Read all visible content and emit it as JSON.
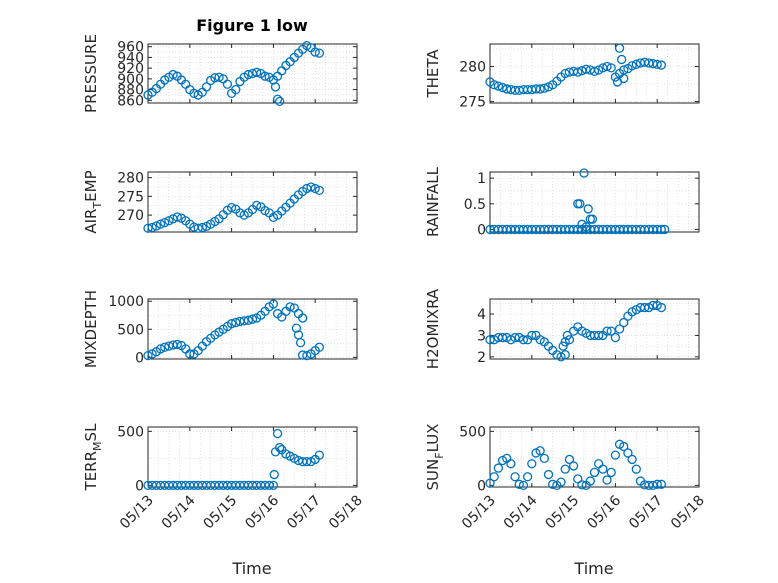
{
  "figure_title": "Figure 1 low",
  "colors": {
    "marker": "#0072BD",
    "axis": "#262626",
    "grid": "#d0d0d0"
  },
  "chart_data": [
    {
      "type": "scatter",
      "title": "Figure 1 low",
      "ylabel": "PRESSURE",
      "yticks": [
        "860",
        "880",
        "900",
        "920",
        "940",
        "960"
      ],
      "ylim": [
        855,
        965
      ],
      "xlim": [
        13,
        18
      ],
      "grid": true,
      "x": [
        13.0,
        13.1,
        13.2,
        13.3,
        13.4,
        13.5,
        13.6,
        13.7,
        13.8,
        13.9,
        14.0,
        14.1,
        14.2,
        14.3,
        14.4,
        14.5,
        14.6,
        14.7,
        14.8,
        14.9,
        15.0,
        15.1,
        15.2,
        15.3,
        15.4,
        15.5,
        15.6,
        15.7,
        15.8,
        15.9,
        16.0,
        16.1,
        16.2,
        16.3,
        16.4,
        16.5,
        16.6,
        16.7,
        16.8,
        16.9,
        17.0,
        17.1,
        16.05,
        16.1,
        16.15
      ],
      "y": [
        870,
        875,
        882,
        890,
        898,
        903,
        908,
        905,
        898,
        890,
        880,
        873,
        870,
        875,
        885,
        897,
        902,
        903,
        900,
        890,
        873,
        880,
        895,
        903,
        908,
        910,
        912,
        910,
        905,
        903,
        898,
        905,
        915,
        925,
        932,
        940,
        948,
        955,
        962,
        958,
        950,
        948,
        885,
        862,
        858
      ]
    },
    {
      "type": "scatter",
      "ylabel": "THETA",
      "yticks": [
        "275",
        "280"
      ],
      "ylim": [
        274.8,
        283.2
      ],
      "xlim": [
        13,
        18
      ],
      "grid": true,
      "x": [
        13.0,
        13.1,
        13.2,
        13.3,
        13.4,
        13.5,
        13.6,
        13.7,
        13.8,
        13.9,
        14.0,
        14.1,
        14.2,
        14.3,
        14.4,
        14.5,
        14.6,
        14.7,
        14.8,
        14.9,
        15.0,
        15.1,
        15.2,
        15.3,
        15.4,
        15.5,
        15.6,
        15.7,
        15.8,
        15.9,
        16.0,
        16.1,
        16.2,
        16.3,
        16.4,
        16.5,
        16.6,
        16.7,
        16.8,
        16.9,
        17.0,
        17.1,
        16.05,
        16.1,
        16.15,
        16.2
      ],
      "y": [
        277.8,
        277.4,
        277.2,
        277.0,
        276.8,
        276.7,
        276.6,
        276.6,
        276.7,
        276.7,
        276.7,
        276.8,
        276.8,
        276.9,
        277.1,
        277.4,
        277.9,
        278.5,
        279.0,
        279.2,
        279.3,
        279.2,
        279.4,
        279.6,
        279.5,
        279.3,
        279.5,
        279.8,
        280.0,
        279.8,
        278.5,
        279.0,
        279.5,
        279.7,
        280.1,
        280.3,
        280.5,
        280.6,
        280.5,
        280.4,
        280.3,
        280.2,
        277.8,
        282.6,
        281.0,
        278.3
      ]
    },
    {
      "type": "scatter",
      "ylabel": "AIR_TEMP",
      "yticks": [
        "270",
        "275",
        "280"
      ],
      "ylim": [
        265.5,
        281.5
      ],
      "xlim": [
        13,
        18
      ],
      "grid": true,
      "x": [
        13.0,
        13.1,
        13.2,
        13.3,
        13.4,
        13.5,
        13.6,
        13.7,
        13.8,
        13.9,
        14.0,
        14.1,
        14.2,
        14.3,
        14.4,
        14.5,
        14.6,
        14.7,
        14.8,
        14.9,
        15.0,
        15.1,
        15.2,
        15.3,
        15.4,
        15.5,
        15.6,
        15.7,
        15.8,
        15.9,
        16.0,
        16.1,
        16.2,
        16.3,
        16.4,
        16.5,
        16.6,
        16.7,
        16.8,
        16.9,
        17.0,
        17.1
      ],
      "y": [
        266.5,
        266.7,
        267.1,
        267.6,
        268.0,
        268.5,
        269.0,
        269.5,
        269.2,
        268.5,
        267.6,
        266.8,
        266.5,
        266.7,
        267.0,
        267.6,
        268.3,
        269.0,
        270.1,
        271.3,
        272.0,
        271.6,
        270.6,
        270.0,
        270.6,
        271.5,
        272.6,
        272.2,
        271.2,
        270.6,
        269.4,
        270.0,
        271.1,
        272.1,
        273.2,
        274.3,
        275.4,
        276.3,
        277.1,
        277.5,
        277.1,
        276.6
      ]
    },
    {
      "type": "scatter",
      "ylabel": "RAINFALL",
      "yticks": [
        "0",
        "0.5",
        "1"
      ],
      "ylim": [
        -0.05,
        1.12
      ],
      "xlim": [
        13,
        18
      ],
      "grid": true,
      "x": [
        13.0,
        13.1,
        13.2,
        13.3,
        13.4,
        13.5,
        13.6,
        13.7,
        13.8,
        13.9,
        14.0,
        14.1,
        14.2,
        14.3,
        14.4,
        14.5,
        14.6,
        14.7,
        14.8,
        14.9,
        15.0,
        15.1,
        15.2,
        15.3,
        15.4,
        15.5,
        15.6,
        15.7,
        15.8,
        15.9,
        16.0,
        16.1,
        16.2,
        16.3,
        16.4,
        16.5,
        16.6,
        16.7,
        16.8,
        16.9,
        17.0,
        17.1,
        17.18,
        15.1,
        15.15,
        15.2,
        15.25,
        15.3,
        15.35,
        15.4,
        15.45
      ],
      "y": [
        0,
        0,
        0,
        0,
        0,
        0,
        0,
        0,
        0,
        0,
        0,
        0,
        0,
        0,
        0,
        0,
        0,
        0,
        0,
        0,
        0,
        0,
        0,
        0,
        0,
        0,
        0,
        0,
        0,
        0,
        0,
        0,
        0,
        0,
        0,
        0,
        0,
        0,
        0,
        0,
        0,
        0,
        0,
        0.5,
        0.5,
        0.1,
        1.1,
        0.05,
        0.4,
        0.2,
        0.2
      ]
    },
    {
      "type": "scatter",
      "ylabel": "MIXDEPTH",
      "yticks": [
        "0",
        "500",
        "1000"
      ],
      "ylim": [
        -30,
        1040
      ],
      "xlim": [
        13,
        18
      ],
      "grid": true,
      "x": [
        13.0,
        13.1,
        13.2,
        13.3,
        13.4,
        13.5,
        13.6,
        13.7,
        13.8,
        13.9,
        14.0,
        14.1,
        14.2,
        14.3,
        14.4,
        14.5,
        14.6,
        14.7,
        14.8,
        14.9,
        15.0,
        15.1,
        15.2,
        15.3,
        15.4,
        15.5,
        15.6,
        15.7,
        15.8,
        15.9,
        16.0,
        16.1,
        16.2,
        16.3,
        16.4,
        16.5,
        16.6,
        16.7,
        16.8,
        16.9,
        17.0,
        17.1,
        16.55,
        16.6,
        16.65,
        16.7
      ],
      "y": [
        30,
        60,
        100,
        150,
        180,
        200,
        220,
        230,
        210,
        150,
        60,
        60,
        120,
        200,
        280,
        340,
        400,
        450,
        500,
        550,
        600,
        620,
        640,
        650,
        660,
        680,
        700,
        750,
        820,
        900,
        950,
        780,
        720,
        820,
        900,
        880,
        780,
        700,
        30,
        60,
        120,
        180,
        520,
        400,
        260,
        40
      ]
    },
    {
      "type": "scatter",
      "ylabel": "H2OMIXRA",
      "yticks": [
        "2",
        "3",
        "4"
      ],
      "ylim": [
        1.9,
        4.7
      ],
      "xlim": [
        13,
        18
      ],
      "grid": true,
      "x": [
        13.0,
        13.1,
        13.2,
        13.3,
        13.4,
        13.5,
        13.6,
        13.7,
        13.8,
        13.9,
        14.0,
        14.1,
        14.2,
        14.3,
        14.4,
        14.5,
        14.6,
        14.7,
        14.8,
        14.9,
        15.0,
        15.1,
        15.2,
        15.3,
        15.4,
        15.5,
        15.6,
        15.7,
        15.8,
        15.9,
        16.0,
        16.1,
        16.2,
        16.3,
        16.4,
        16.5,
        16.6,
        16.7,
        16.8,
        16.9,
        17.0,
        17.1,
        14.75,
        14.8,
        14.85
      ],
      "y": [
        2.8,
        2.8,
        2.9,
        2.9,
        2.9,
        2.8,
        2.9,
        2.9,
        2.8,
        2.8,
        3.0,
        3.0,
        2.8,
        2.7,
        2.5,
        2.3,
        2.1,
        2.0,
        2.1,
        2.8,
        3.2,
        3.4,
        3.2,
        3.1,
        3.0,
        3.0,
        3.0,
        3.0,
        3.2,
        3.2,
        2.9,
        3.3,
        3.6,
        3.9,
        4.1,
        4.2,
        4.3,
        4.3,
        4.3,
        4.4,
        4.4,
        4.3,
        2.5,
        2.7,
        3.0
      ]
    },
    {
      "type": "scatter",
      "ylabel": "TERR_MSL",
      "yticks": [
        "0",
        "500"
      ],
      "ylim": [
        -15,
        540
      ],
      "xlim": [
        13,
        18
      ],
      "grid": true,
      "x": [
        13.0,
        13.1,
        13.2,
        13.3,
        13.4,
        13.5,
        13.6,
        13.7,
        13.8,
        13.9,
        14.0,
        14.1,
        14.2,
        14.3,
        14.4,
        14.5,
        14.6,
        14.7,
        14.8,
        14.9,
        15.0,
        15.1,
        15.2,
        15.3,
        15.4,
        15.5,
        15.6,
        15.7,
        15.8,
        15.9,
        16.0,
        16.05,
        16.1,
        16.15,
        16.2,
        16.3,
        16.4,
        16.5,
        16.6,
        16.7,
        16.8,
        16.9,
        17.0,
        17.1,
        16.02
      ],
      "y": [
        0,
        0,
        0,
        0,
        0,
        0,
        0,
        0,
        0,
        0,
        0,
        0,
        0,
        0,
        0,
        0,
        0,
        0,
        0,
        0,
        0,
        0,
        0,
        0,
        0,
        0,
        0,
        0,
        0,
        0,
        0,
        310,
        480,
        350,
        330,
        290,
        270,
        250,
        230,
        220,
        220,
        220,
        240,
        280,
        100
      ]
    },
    {
      "type": "scatter",
      "ylabel": "SUN_FLUX",
      "yticks": [
        "0",
        "500"
      ],
      "ylim": [
        -15,
        540
      ],
      "xlim": [
        13,
        18
      ],
      "grid": true,
      "x": [
        13.0,
        13.1,
        13.2,
        13.3,
        13.4,
        13.5,
        13.6,
        13.7,
        13.8,
        13.9,
        14.0,
        14.1,
        14.2,
        14.3,
        14.4,
        14.5,
        14.6,
        14.7,
        14.8,
        14.9,
        15.0,
        15.1,
        15.2,
        15.3,
        15.4,
        15.5,
        15.6,
        15.7,
        15.8,
        15.9,
        16.0,
        16.1,
        16.2,
        16.3,
        16.4,
        16.5,
        16.6,
        16.7,
        16.8,
        16.9,
        17.0,
        17.1
      ],
      "y": [
        20,
        80,
        160,
        230,
        250,
        200,
        80,
        10,
        0,
        80,
        200,
        300,
        320,
        250,
        100,
        10,
        0,
        30,
        150,
        240,
        180,
        60,
        5,
        0,
        40,
        120,
        200,
        150,
        50,
        120,
        280,
        380,
        360,
        300,
        240,
        150,
        40,
        5,
        0,
        0,
        10,
        10
      ]
    }
  ],
  "x_axis": {
    "label": "Time",
    "ticks": [
      "05/13",
      "05/14",
      "05/15",
      "05/16",
      "05/17",
      "05/18"
    ]
  }
}
